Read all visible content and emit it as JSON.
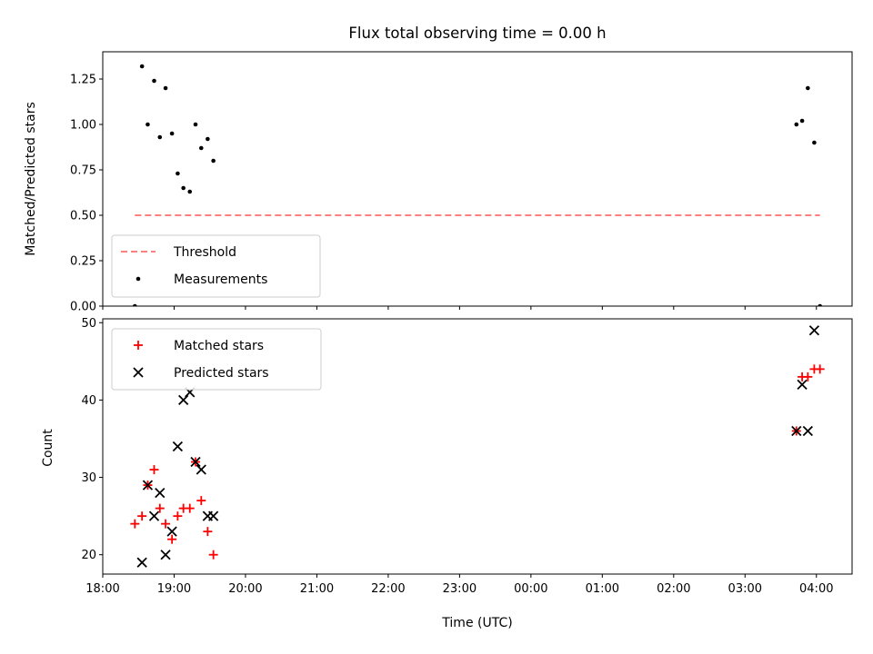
{
  "chart_data": [
    {
      "type": "scatter",
      "title": "Flux total observing time = 0.00 h",
      "xlabel": "",
      "ylabel": "Matched/Predicted stars",
      "xlim": [
        18.0,
        28.5
      ],
      "ylim": [
        0.0,
        1.4
      ],
      "yticks": [
        0.0,
        0.25,
        0.5,
        0.75,
        1.0,
        1.25
      ],
      "ytick_labels": [
        "0.00",
        "0.25",
        "0.50",
        "0.75",
        "1.00",
        "1.25"
      ],
      "legend_position": "lower-left",
      "colors": {
        "threshold": "#ff7f7f",
        "measurements": "#000000"
      },
      "series": [
        {
          "name": "Threshold",
          "kind": "dashed-line",
          "x": [
            18.45,
            28.05
          ],
          "y": [
            0.5,
            0.5
          ]
        },
        {
          "name": "Measurements",
          "kind": "points",
          "points": [
            [
              18.45,
              0.0
            ],
            [
              18.55,
              1.32
            ],
            [
              18.63,
              1.0
            ],
            [
              18.72,
              1.24
            ],
            [
              18.8,
              0.93
            ],
            [
              18.88,
              1.2
            ],
            [
              18.97,
              0.95
            ],
            [
              19.05,
              0.73
            ],
            [
              19.13,
              0.65
            ],
            [
              19.22,
              0.63
            ],
            [
              19.3,
              1.0
            ],
            [
              19.38,
              0.87
            ],
            [
              19.47,
              0.92
            ],
            [
              19.55,
              0.8
            ],
            [
              27.72,
              1.0
            ],
            [
              27.8,
              1.02
            ],
            [
              27.88,
              1.2
            ],
            [
              27.97,
              0.9
            ],
            [
              28.05,
              0.0
            ]
          ]
        }
      ]
    },
    {
      "type": "scatter",
      "title": "",
      "xlabel": "Time (UTC)",
      "ylabel": "Count",
      "xlim": [
        18.0,
        28.5
      ],
      "ylim": [
        17.5,
        50.5
      ],
      "yticks": [
        20,
        30,
        40,
        50
      ],
      "ytick_labels": [
        "20",
        "30",
        "40",
        "50"
      ],
      "xticks": [
        18,
        19,
        20,
        21,
        22,
        23,
        24,
        25,
        26,
        27,
        28
      ],
      "xtick_labels": [
        "18:00",
        "19:00",
        "20:00",
        "21:00",
        "22:00",
        "23:00",
        "00:00",
        "01:00",
        "02:00",
        "03:00",
        "04:00"
      ],
      "legend_position": "upper-left",
      "colors": {
        "matched": "#ff0000",
        "predicted": "#000000"
      },
      "series": [
        {
          "name": "Matched stars",
          "marker": "+",
          "points": [
            [
              18.45,
              24
            ],
            [
              18.55,
              25
            ],
            [
              18.63,
              29
            ],
            [
              18.72,
              31
            ],
            [
              18.8,
              26
            ],
            [
              18.88,
              24
            ],
            [
              18.97,
              22
            ],
            [
              19.05,
              25
            ],
            [
              19.13,
              26
            ],
            [
              19.22,
              26
            ],
            [
              19.3,
              32
            ],
            [
              19.38,
              27
            ],
            [
              19.47,
              23
            ],
            [
              19.55,
              20
            ],
            [
              27.72,
              36
            ],
            [
              27.8,
              43
            ],
            [
              27.88,
              43
            ],
            [
              27.97,
              44
            ],
            [
              28.05,
              44
            ]
          ]
        },
        {
          "name": "Predicted stars",
          "marker": "x",
          "points": [
            [
              18.55,
              19
            ],
            [
              18.63,
              29
            ],
            [
              18.72,
              25
            ],
            [
              18.8,
              28
            ],
            [
              18.88,
              20
            ],
            [
              18.97,
              23
            ],
            [
              19.05,
              34
            ],
            [
              19.13,
              40
            ],
            [
              19.22,
              41
            ],
            [
              19.3,
              32
            ],
            [
              19.38,
              31
            ],
            [
              19.47,
              25
            ],
            [
              19.55,
              25
            ],
            [
              27.72,
              36
            ],
            [
              27.8,
              42
            ],
            [
              27.88,
              36
            ],
            [
              27.97,
              49
            ]
          ]
        }
      ]
    }
  ]
}
